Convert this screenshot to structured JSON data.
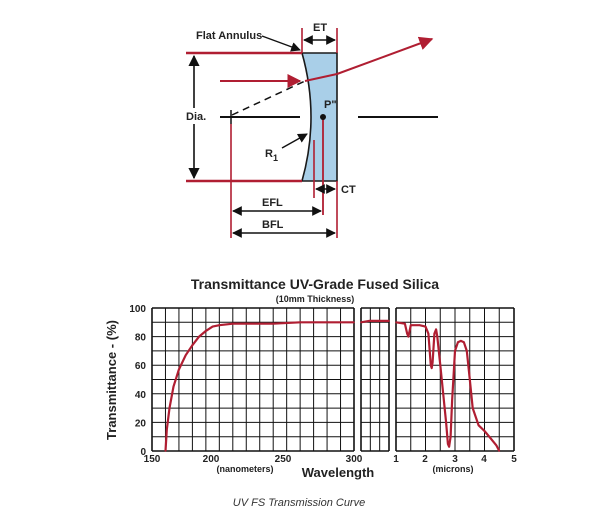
{
  "diagram": {
    "labels": {
      "flat_annulus": "Flat Annulus",
      "et": "ET",
      "dia": "Dia.",
      "p_dblprime": "P\"",
      "r1": "R",
      "r1_sub": "1",
      "ct": "CT",
      "efl": "EFL",
      "bfl": "BFL"
    },
    "colors": {
      "ray": "#b01e32",
      "lens_fill": "#a9cfe8",
      "lens_stroke": "#1a1a1a"
    }
  },
  "chart_data": {
    "type": "line",
    "title": "Transmittance UV-Grade Fused Silica",
    "subtitle": "(10mm Thickness)",
    "ylabel": "Transmittance - (%)",
    "xlabel": "Wavelength",
    "y_ticks": [
      "0",
      "20",
      "40",
      "60",
      "80",
      "100"
    ],
    "ylim": [
      0,
      100
    ],
    "grid": true,
    "color": "#b01e32",
    "panels": [
      {
        "unit_label": "(nanometers)",
        "xlim": [
          150,
          300
        ],
        "x_ticks": [
          "150",
          "200",
          "250",
          "300"
        ],
        "x": [
          160,
          161,
          163,
          166,
          170,
          175,
          180,
          185,
          190,
          195,
          200,
          210,
          220,
          240,
          260,
          280,
          300
        ],
        "y": [
          0,
          15,
          30,
          45,
          57,
          67,
          74,
          80,
          84,
          87,
          88,
          89,
          89,
          89,
          90,
          90,
          90
        ]
      },
      {
        "unit_label": "",
        "xlim": [
          300,
          1000
        ],
        "x_ticks": [],
        "x": [
          300,
          500,
          1000
        ],
        "y": [
          90,
          91,
          91
        ]
      },
      {
        "unit_label": "(microns)",
        "xlim": [
          1,
          5
        ],
        "x_ticks": [
          "1",
          "2",
          "3",
          "4",
          "5"
        ],
        "x": [
          1.0,
          1.3,
          1.38,
          1.42,
          1.5,
          1.8,
          2.0,
          2.1,
          2.18,
          2.21,
          2.24,
          2.3,
          2.36,
          2.4,
          2.5,
          2.6,
          2.7,
          2.76,
          2.8,
          2.85,
          2.9,
          3.0,
          3.1,
          3.2,
          3.3,
          3.4,
          3.5,
          3.6,
          3.8,
          4.0,
          4.2,
          4.4,
          4.5
        ],
        "y": [
          90,
          89,
          82,
          80,
          88,
          88,
          87,
          82,
          60,
          58,
          62,
          82,
          85,
          80,
          60,
          40,
          20,
          5,
          3,
          10,
          35,
          70,
          76,
          77,
          76,
          70,
          50,
          30,
          18,
          14,
          9,
          4,
          0
        ]
      }
    ]
  },
  "caption": "UV FS Transmission Curve"
}
